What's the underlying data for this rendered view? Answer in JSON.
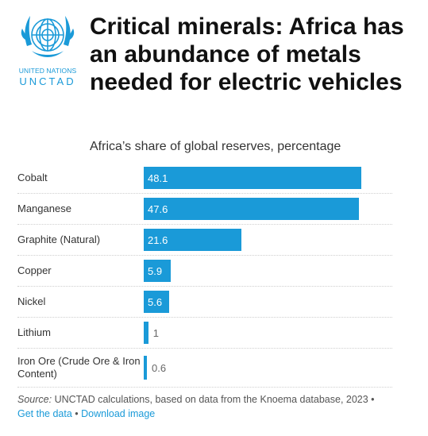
{
  "logo": {
    "line1": "UNITED NATIONS",
    "line2": "UNCTAD"
  },
  "title": "Critical minerals: Africa has an abundance of metals needed for electric vehicles",
  "subtitle": "Africa’s share of global reserves, percentage",
  "chart_data": {
    "type": "bar",
    "orientation": "horizontal",
    "categories": [
      "Cobalt",
      "Manganese",
      "Graphite (Natural)",
      "Copper",
      "Nickel",
      "Lithium",
      "Iron Ore (Crude Ore & Iron Content)"
    ],
    "values": [
      48.1,
      47.6,
      21.6,
      5.9,
      5.6,
      1,
      0.6
    ],
    "value_labels": [
      "48.1",
      "47.6",
      "21.6",
      "5.9",
      "5.6",
      "1",
      "0.6"
    ],
    "bar_color": "#1a9ad8",
    "xlim": [
      0,
      55
    ],
    "grid": false,
    "legend": "none"
  },
  "source": {
    "label": "Source:",
    "text": " UNCTAD calculations, based on data from the Knoema database, 2023 • ",
    "get_data": "Get the data",
    "separator": " • ",
    "download": "Download image"
  }
}
